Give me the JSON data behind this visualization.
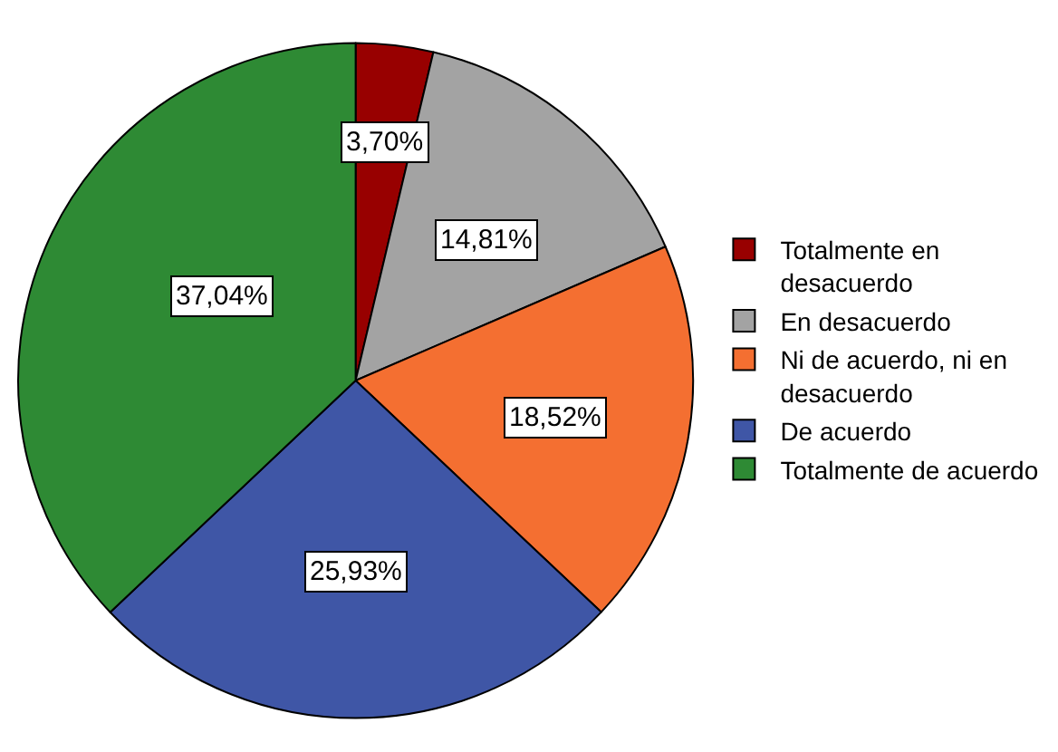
{
  "chart_data": {
    "type": "pie",
    "categories": [
      "Totalmente en desacuerdo",
      "En desacuerdo",
      "Ni de acuerdo, ni en desacuerdo",
      "De acuerdo",
      "Totalmente de acuerdo"
    ],
    "values": [
      3.7,
      14.81,
      18.52,
      25.93,
      37.04
    ],
    "value_labels": [
      "3,70%",
      "14,81%",
      "18,52%",
      "25,93%",
      "37,04%"
    ],
    "colors": [
      "#980000",
      "#a3a3a3",
      "#f46f31",
      "#3f56a6",
      "#2e8a34"
    ],
    "legend": "right"
  }
}
